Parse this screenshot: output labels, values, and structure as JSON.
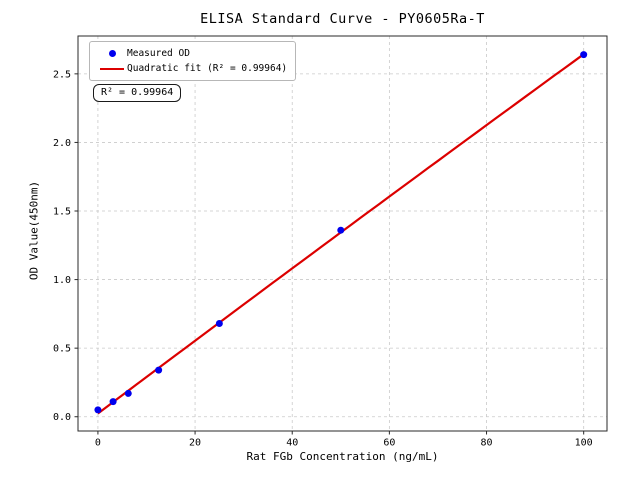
{
  "chart_data": {
    "type": "scatter",
    "title": "ELISA Standard Curve - PY0605Ra-T",
    "xlabel": "Rat FGb Concentration (ng/mL)",
    "ylabel": "OD Value(450nm)",
    "x_ticks": [
      0,
      20,
      40,
      60,
      80,
      100
    ],
    "y_ticks": [
      0.0,
      0.5,
      1.0,
      1.5,
      2.0,
      2.5
    ],
    "xlim": [
      -4.1,
      104.8
    ],
    "ylim": [
      -0.104,
      2.776
    ],
    "grid": true,
    "grid_style": "dashed",
    "legend_position": "upper left",
    "series": [
      {
        "name": "Measured OD",
        "type": "scatter",
        "marker": "circle",
        "color": "#0000ee",
        "x": [
          0,
          3.125,
          6.25,
          12.5,
          25,
          50,
          100
        ],
        "y": [
          0.05,
          0.11,
          0.17,
          0.34,
          0.68,
          1.36,
          2.64
        ]
      },
      {
        "name": "Quadratic fit (R² = 0.99964)",
        "type": "line",
        "fit": "quadratic",
        "r_squared": 0.99964,
        "color": "#dc0000",
        "x_range": [
          0,
          100
        ]
      }
    ],
    "annotation": {
      "text": "R² = 0.99964"
    }
  },
  "colors": {
    "dot": "#0000ee",
    "line": "#dc0000",
    "grid": "#c9c9c9",
    "spine": "#2a2a2a",
    "background": "#ffffff"
  }
}
